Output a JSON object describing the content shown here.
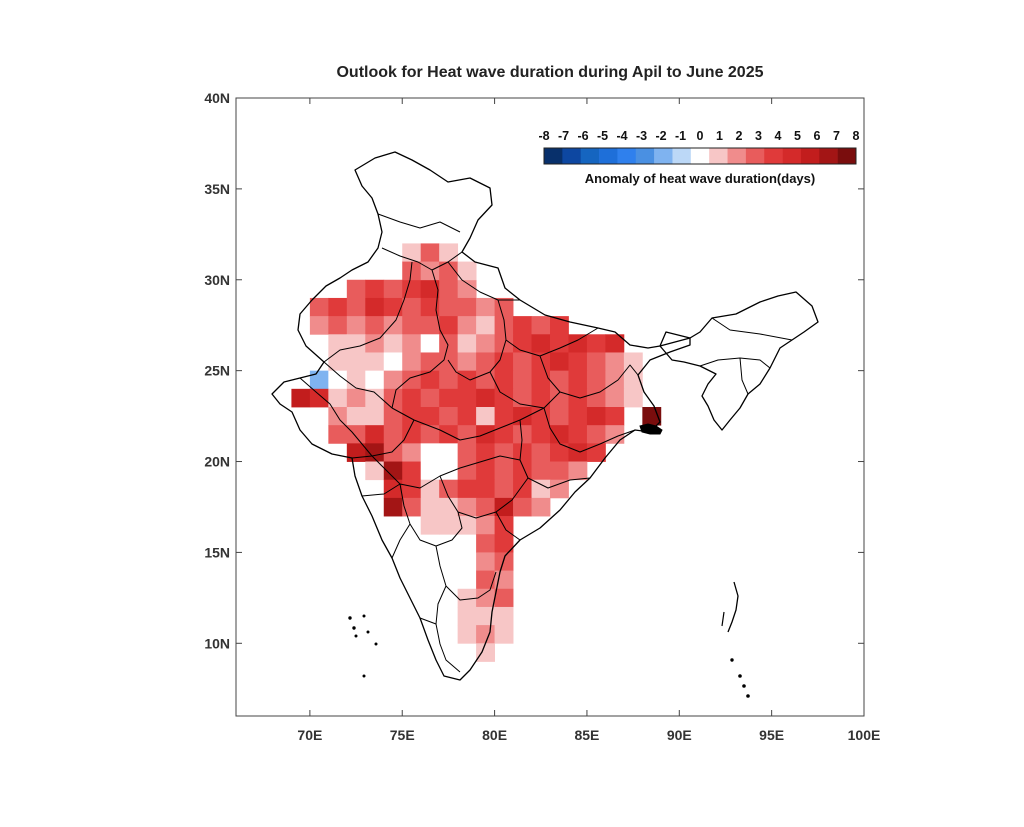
{
  "title": "Outlook for Heat wave duration during Apil to June 2025",
  "colorbar": {
    "title": "Anomaly of heat wave duration(days)",
    "ticks": [
      "-8",
      "-7",
      "-6",
      "-5",
      "-4",
      "-3",
      "-2",
      "-1",
      "0",
      "1",
      "2",
      "3",
      "4",
      "5",
      "6",
      "7",
      "8"
    ],
    "colors": [
      "#08306b",
      "#0d47a1",
      "#1565c0",
      "#1e6fd9",
      "#2f80ed",
      "#4a90e2",
      "#7fb3f0",
      "#bcd8f7",
      "#ffffff",
      "#f7c6c6",
      "#f08c8c",
      "#e85c5c",
      "#e03a3a",
      "#d42a2a",
      "#c21d1d",
      "#a31515",
      "#7a0d0d"
    ]
  },
  "chart_data": {
    "type": "heatmap",
    "title": "Outlook for Heat wave duration during Apil to June 2025",
    "xlabel": "",
    "ylabel": "",
    "xlim": [
      66,
      100
    ],
    "ylim": [
      6,
      40
    ],
    "x_ticks": [
      "70E",
      "75E",
      "80E",
      "85E",
      "90E",
      "95E",
      "100E"
    ],
    "y_ticks": [
      "40N",
      "35N",
      "30N",
      "25N",
      "20N",
      "15N",
      "10N"
    ],
    "x_tick_values": [
      70,
      75,
      80,
      85,
      90,
      95,
      100
    ],
    "y_tick_values": [
      40,
      35,
      30,
      25,
      20,
      15,
      10
    ],
    "grid_resolution_deg": 1,
    "colorbar_range": [
      -8,
      8
    ],
    "colorbar_label": "Anomaly of heat wave duration(days)",
    "legend_position": "top-right",
    "grid": false,
    "cells": [
      {
        "lon": 72,
        "lat": 29,
        "v": 3
      },
      {
        "lon": 73,
        "lat": 29,
        "v": 4
      },
      {
        "lon": 74,
        "lat": 29,
        "v": 3
      },
      {
        "lon": 75,
        "lat": 29,
        "v": 4
      },
      {
        "lon": 76,
        "lat": 29,
        "v": 5
      },
      {
        "lon": 77,
        "lat": 29,
        "v": 3
      },
      {
        "lon": 78,
        "lat": 29,
        "v": 2
      },
      {
        "lon": 75,
        "lat": 31,
        "v": 1
      },
      {
        "lon": 76,
        "lat": 31,
        "v": 3
      },
      {
        "lon": 77,
        "lat": 31,
        "v": 1
      },
      {
        "lon": 75,
        "lat": 30,
        "v": 3
      },
      {
        "lon": 76,
        "lat": 30,
        "v": 2
      },
      {
        "lon": 77,
        "lat": 30,
        "v": 3
      },
      {
        "lon": 78,
        "lat": 30,
        "v": 1
      },
      {
        "lon": 70,
        "lat": 28,
        "v": 3
      },
      {
        "lon": 71,
        "lat": 28,
        "v": 4
      },
      {
        "lon": 72,
        "lat": 28,
        "v": 3
      },
      {
        "lon": 73,
        "lat": 28,
        "v": 5
      },
      {
        "lon": 74,
        "lat": 28,
        "v": 4
      },
      {
        "lon": 75,
        "lat": 28,
        "v": 3
      },
      {
        "lon": 76,
        "lat": 28,
        "v": 4
      },
      {
        "lon": 77,
        "lat": 28,
        "v": 3
      },
      {
        "lon": 78,
        "lat": 28,
        "v": 3
      },
      {
        "lon": 79,
        "lat": 28,
        "v": 2
      },
      {
        "lon": 80,
        "lat": 28,
        "v": 3
      },
      {
        "lon": 70,
        "lat": 27,
        "v": 2
      },
      {
        "lon": 71,
        "lat": 27,
        "v": 3
      },
      {
        "lon": 72,
        "lat": 27,
        "v": 2
      },
      {
        "lon": 73,
        "lat": 27,
        "v": 3
      },
      {
        "lon": 74,
        "lat": 27,
        "v": 2
      },
      {
        "lon": 75,
        "lat": 27,
        "v": 3
      },
      {
        "lon": 76,
        "lat": 27,
        "v": 3
      },
      {
        "lon": 77,
        "lat": 27,
        "v": 4
      },
      {
        "lon": 78,
        "lat": 27,
        "v": 2
      },
      {
        "lon": 79,
        "lat": 27,
        "v": 1
      },
      {
        "lon": 80,
        "lat": 27,
        "v": 3
      },
      {
        "lon": 81,
        "lat": 27,
        "v": 4
      },
      {
        "lon": 82,
        "lat": 27,
        "v": 3
      },
      {
        "lon": 83,
        "lat": 27,
        "v": 4
      },
      {
        "lon": 71,
        "lat": 26,
        "v": 1
      },
      {
        "lon": 72,
        "lat": 26,
        "v": 1
      },
      {
        "lon": 73,
        "lat": 26,
        "v": 2
      },
      {
        "lon": 74,
        "lat": 26,
        "v": 1
      },
      {
        "lon": 75,
        "lat": 26,
        "v": 2
      },
      {
        "lon": 76,
        "lat": 26,
        "v": 0
      },
      {
        "lon": 77,
        "lat": 26,
        "v": 3
      },
      {
        "lon": 78,
        "lat": 26,
        "v": 1
      },
      {
        "lon": 79,
        "lat": 26,
        "v": 2
      },
      {
        "lon": 80,
        "lat": 26,
        "v": 3
      },
      {
        "lon": 81,
        "lat": 26,
        "v": 4
      },
      {
        "lon": 82,
        "lat": 26,
        "v": 5
      },
      {
        "lon": 83,
        "lat": 26,
        "v": 4
      },
      {
        "lon": 84,
        "lat": 26,
        "v": 5
      },
      {
        "lon": 85,
        "lat": 26,
        "v": 4
      },
      {
        "lon": 86,
        "lat": 26,
        "v": 5
      },
      {
        "lon": 71,
        "lat": 25,
        "v": 1
      },
      {
        "lon": 72,
        "lat": 25,
        "v": 1
      },
      {
        "lon": 73,
        "lat": 25,
        "v": 1
      },
      {
        "lon": 74,
        "lat": 25,
        "v": 0
      },
      {
        "lon": 75,
        "lat": 25,
        "v": 2
      },
      {
        "lon": 76,
        "lat": 25,
        "v": 3
      },
      {
        "lon": 77,
        "lat": 25,
        "v": 3
      },
      {
        "lon": 78,
        "lat": 25,
        "v": 2
      },
      {
        "lon": 79,
        "lat": 25,
        "v": 3
      },
      {
        "lon": 80,
        "lat": 25,
        "v": 4
      },
      {
        "lon": 81,
        "lat": 25,
        "v": 3
      },
      {
        "lon": 82,
        "lat": 25,
        "v": 4
      },
      {
        "lon": 83,
        "lat": 25,
        "v": 5
      },
      {
        "lon": 84,
        "lat": 25,
        "v": 4
      },
      {
        "lon": 85,
        "lat": 25,
        "v": 3
      },
      {
        "lon": 86,
        "lat": 25,
        "v": 2
      },
      {
        "lon": 87,
        "lat": 25,
        "v": 1
      },
      {
        "lon": 70,
        "lat": 24,
        "v": -2
      },
      {
        "lon": 71,
        "lat": 24,
        "v": 0
      },
      {
        "lon": 72,
        "lat": 24,
        "v": 1
      },
      {
        "lon": 73,
        "lat": 24,
        "v": 0
      },
      {
        "lon": 74,
        "lat": 24,
        "v": 2
      },
      {
        "lon": 75,
        "lat": 24,
        "v": 3
      },
      {
        "lon": 76,
        "lat": 24,
        "v": 4
      },
      {
        "lon": 77,
        "lat": 24,
        "v": 3
      },
      {
        "lon": 78,
        "lat": 24,
        "v": 4
      },
      {
        "lon": 79,
        "lat": 24,
        "v": 3
      },
      {
        "lon": 80,
        "lat": 24,
        "v": 4
      },
      {
        "lon": 81,
        "lat": 24,
        "v": 3
      },
      {
        "lon": 82,
        "lat": 24,
        "v": 4
      },
      {
        "lon": 83,
        "lat": 24,
        "v": 3
      },
      {
        "lon": 84,
        "lat": 24,
        "v": 4
      },
      {
        "lon": 85,
        "lat": 24,
        "v": 3
      },
      {
        "lon": 86,
        "lat": 24,
        "v": 2
      },
      {
        "lon": 87,
        "lat": 24,
        "v": 1
      },
      {
        "lon": 69,
        "lat": 23,
        "v": 6
      },
      {
        "lon": 70,
        "lat": 23,
        "v": 5
      },
      {
        "lon": 71,
        "lat": 23,
        "v": 1
      },
      {
        "lon": 72,
        "lat": 23,
        "v": 2
      },
      {
        "lon": 73,
        "lat": 23,
        "v": 1
      },
      {
        "lon": 74,
        "lat": 23,
        "v": 3
      },
      {
        "lon": 75,
        "lat": 23,
        "v": 4
      },
      {
        "lon": 76,
        "lat": 23,
        "v": 3
      },
      {
        "lon": 77,
        "lat": 23,
        "v": 4
      },
      {
        "lon": 78,
        "lat": 23,
        "v": 4
      },
      {
        "lon": 79,
        "lat": 23,
        "v": 5
      },
      {
        "lon": 80,
        "lat": 23,
        "v": 4
      },
      {
        "lon": 81,
        "lat": 23,
        "v": 3
      },
      {
        "lon": 82,
        "lat": 23,
        "v": 4
      },
      {
        "lon": 83,
        "lat": 23,
        "v": 3
      },
      {
        "lon": 84,
        "lat": 23,
        "v": 4
      },
      {
        "lon": 85,
        "lat": 23,
        "v": 3
      },
      {
        "lon": 86,
        "lat": 23,
        "v": 2
      },
      {
        "lon": 87,
        "lat": 23,
        "v": 1
      },
      {
        "lon": 71,
        "lat": 22,
        "v": 2
      },
      {
        "lon": 72,
        "lat": 22,
        "v": 1
      },
      {
        "lon": 73,
        "lat": 22,
        "v": 1
      },
      {
        "lon": 74,
        "lat": 22,
        "v": 3
      },
      {
        "lon": 75,
        "lat": 22,
        "v": 4
      },
      {
        "lon": 76,
        "lat": 22,
        "v": 4
      },
      {
        "lon": 77,
        "lat": 22,
        "v": 3
      },
      {
        "lon": 78,
        "lat": 22,
        "v": 4
      },
      {
        "lon": 79,
        "lat": 22,
        "v": 1
      },
      {
        "lon": 80,
        "lat": 22,
        "v": 4
      },
      {
        "lon": 81,
        "lat": 22,
        "v": 5
      },
      {
        "lon": 82,
        "lat": 22,
        "v": 4
      },
      {
        "lon": 83,
        "lat": 22,
        "v": 3
      },
      {
        "lon": 84,
        "lat": 22,
        "v": 4
      },
      {
        "lon": 85,
        "lat": 22,
        "v": 5
      },
      {
        "lon": 86,
        "lat": 22,
        "v": 4
      },
      {
        "lon": 71,
        "lat": 21,
        "v": 3
      },
      {
        "lon": 72,
        "lat": 21,
        "v": 3
      },
      {
        "lon": 73,
        "lat": 21,
        "v": 5
      },
      {
        "lon": 74,
        "lat": 21,
        "v": 3
      },
      {
        "lon": 75,
        "lat": 21,
        "v": 4
      },
      {
        "lon": 76,
        "lat": 21,
        "v": 3
      },
      {
        "lon": 77,
        "lat": 21,
        "v": 4
      },
      {
        "lon": 78,
        "lat": 21,
        "v": 3
      },
      {
        "lon": 79,
        "lat": 21,
        "v": 5
      },
      {
        "lon": 80,
        "lat": 21,
        "v": 4
      },
      {
        "lon": 81,
        "lat": 21,
        "v": 3
      },
      {
        "lon": 82,
        "lat": 21,
        "v": 4
      },
      {
        "lon": 83,
        "lat": 21,
        "v": 5
      },
      {
        "lon": 84,
        "lat": 21,
        "v": 4
      },
      {
        "lon": 85,
        "lat": 21,
        "v": 3
      },
      {
        "lon": 86,
        "lat": 21,
        "v": 2
      },
      {
        "lon": 72,
        "lat": 20,
        "v": 6
      },
      {
        "lon": 73,
        "lat": 20,
        "v": 7
      },
      {
        "lon": 74,
        "lat": 20,
        "v": 3
      },
      {
        "lon": 75,
        "lat": 20,
        "v": 2
      },
      {
        "lon": 76,
        "lat": 20,
        "v": 0
      },
      {
        "lon": 77,
        "lat": 20,
        "v": 0
      },
      {
        "lon": 78,
        "lat": 20,
        "v": 3
      },
      {
        "lon": 79,
        "lat": 20,
        "v": 4
      },
      {
        "lon": 80,
        "lat": 20,
        "v": 3
      },
      {
        "lon": 81,
        "lat": 20,
        "v": 4
      },
      {
        "lon": 82,
        "lat": 20,
        "v": 3
      },
      {
        "lon": 83,
        "lat": 20,
        "v": 4
      },
      {
        "lon": 84,
        "lat": 20,
        "v": 5
      },
      {
        "lon": 85,
        "lat": 20,
        "v": 4
      },
      {
        "lon": 73,
        "lat": 19,
        "v": 1
      },
      {
        "lon": 74,
        "lat": 19,
        "v": 7
      },
      {
        "lon": 75,
        "lat": 19,
        "v": 4
      },
      {
        "lon": 76,
        "lat": 19,
        "v": 0
      },
      {
        "lon": 77,
        "lat": 19,
        "v": 0
      },
      {
        "lon": 78,
        "lat": 19,
        "v": 3
      },
      {
        "lon": 79,
        "lat": 19,
        "v": 4
      },
      {
        "lon": 80,
        "lat": 19,
        "v": 3
      },
      {
        "lon": 81,
        "lat": 19,
        "v": 4
      },
      {
        "lon": 82,
        "lat": 19,
        "v": 3
      },
      {
        "lon": 83,
        "lat": 19,
        "v": 3
      },
      {
        "lon": 84,
        "lat": 19,
        "v": 2
      },
      {
        "lon": 74,
        "lat": 18,
        "v": 5
      },
      {
        "lon": 75,
        "lat": 18,
        "v": 4
      },
      {
        "lon": 76,
        "lat": 18,
        "v": 1
      },
      {
        "lon": 77,
        "lat": 18,
        "v": 3
      },
      {
        "lon": 78,
        "lat": 18,
        "v": 4
      },
      {
        "lon": 79,
        "lat": 18,
        "v": 4
      },
      {
        "lon": 80,
        "lat": 18,
        "v": 3
      },
      {
        "lon": 81,
        "lat": 18,
        "v": 4
      },
      {
        "lon": 82,
        "lat": 18,
        "v": 1
      },
      {
        "lon": 83,
        "lat": 18,
        "v": 2
      },
      {
        "lon": 74,
        "lat": 17,
        "v": 7
      },
      {
        "lon": 75,
        "lat": 17,
        "v": 3
      },
      {
        "lon": 76,
        "lat": 17,
        "v": 1
      },
      {
        "lon": 77,
        "lat": 17,
        "v": 1
      },
      {
        "lon": 78,
        "lat": 17,
        "v": 2
      },
      {
        "lon": 79,
        "lat": 17,
        "v": 3
      },
      {
        "lon": 80,
        "lat": 17,
        "v": 6
      },
      {
        "lon": 81,
        "lat": 17,
        "v": 3
      },
      {
        "lon": 82,
        "lat": 17,
        "v": 2
      },
      {
        "lon": 76,
        "lat": 16,
        "v": 1
      },
      {
        "lon": 77,
        "lat": 16,
        "v": 1
      },
      {
        "lon": 78,
        "lat": 16,
        "v": 1
      },
      {
        "lon": 79,
        "lat": 16,
        "v": 2
      },
      {
        "lon": 80,
        "lat": 16,
        "v": 4
      },
      {
        "lon": 79,
        "lat": 15,
        "v": 3
      },
      {
        "lon": 80,
        "lat": 15,
        "v": 4
      },
      {
        "lon": 79,
        "lat": 14,
        "v": 2
      },
      {
        "lon": 80,
        "lat": 14,
        "v": 3
      },
      {
        "lon": 79,
        "lat": 13,
        "v": 3
      },
      {
        "lon": 80,
        "lat": 13,
        "v": 2
      },
      {
        "lon": 78,
        "lat": 12,
        "v": 1
      },
      {
        "lon": 79,
        "lat": 12,
        "v": 2
      },
      {
        "lon": 80,
        "lat": 12,
        "v": 3
      },
      {
        "lon": 78,
        "lat": 11,
        "v": 1
      },
      {
        "lon": 79,
        "lat": 11,
        "v": 1
      },
      {
        "lon": 80,
        "lat": 11,
        "v": 1
      },
      {
        "lon": 78,
        "lat": 10,
        "v": 1
      },
      {
        "lon": 79,
        "lat": 10,
        "v": 2
      },
      {
        "lon": 80,
        "lat": 10,
        "v": 1
      },
      {
        "lon": 79,
        "lat": 9,
        "v": 1
      },
      {
        "lon": 88,
        "lat": 22,
        "v": 8
      }
    ]
  }
}
